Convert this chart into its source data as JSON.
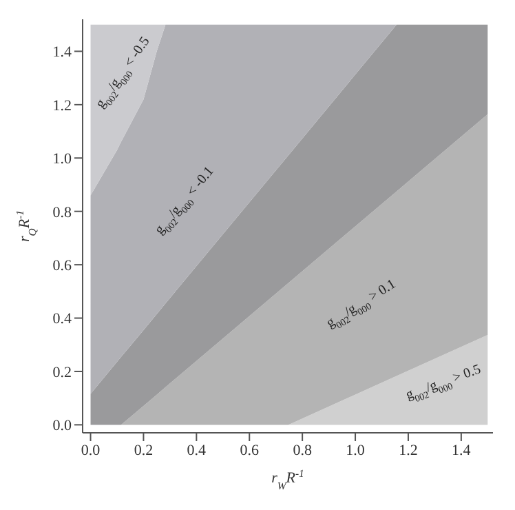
{
  "chart_data": {
    "type": "area",
    "stacked": true,
    "xlabel": "r$_{W}$R$^{-1}$",
    "ylabel": "r$_{Q}$R$^{-1}$",
    "xlim": [
      -0.03,
      1.52
    ],
    "ylim": [
      -0.03,
      1.52
    ],
    "xticks": [
      {
        "value": 0,
        "label": "0.0"
      },
      0.2,
      0.4,
      0.6,
      0.8,
      {
        "value": 1,
        "label": "1.0"
      },
      1.2,
      1.4
    ],
    "yticks": [
      {
        "value": 0,
        "label": "0.0"
      },
      0.2,
      0.4,
      0.6,
      0.8,
      {
        "value": 1,
        "label": "1.0"
      },
      1.2,
      1.4
    ],
    "grid": false,
    "legend": false,
    "x": [
      0,
      0.1,
      0.115,
      0.2,
      0.25,
      0.283,
      0.747,
      1.156,
      1.5
    ],
    "series": [
      {
        "color": "#d0d0d0",
        "values": [
          0,
          0,
          0,
          0,
          0,
          0,
          0,
          0.183,
          0.337
        ]
      },
      {
        "color": "#b4b4b4",
        "values": [
          0,
          0,
          0,
          0.071,
          0.113,
          0.141,
          0.531,
          0.692,
          0.827
        ]
      },
      {
        "color": "#9a9a9c",
        "values": [
          0.116,
          0.236,
          0.254,
          0.284,
          0.302,
          0.314,
          0.479,
          0.625,
          0.336
        ]
      },
      {
        "color": "#b1b1b6",
        "values": [
          0.744,
          0.794,
          0.806,
          0.865,
          0.985,
          1.045,
          0.49,
          0,
          0
        ]
      },
      {
        "color": "#cbcbcf",
        "values": [
          0.64,
          0.47,
          0.44,
          0.28,
          0.1,
          0,
          0,
          0,
          0
        ]
      }
    ],
    "annotations": [
      "g$_{002}$/g$_{000}$ < -0.5",
      "g$_{002}$/g$_{000}$ < -0.1",
      "g$_{002}$/g$_{000}$ > 0.1",
      "g$_{002}$/g$_{000}$ > 0.5"
    ]
  }
}
